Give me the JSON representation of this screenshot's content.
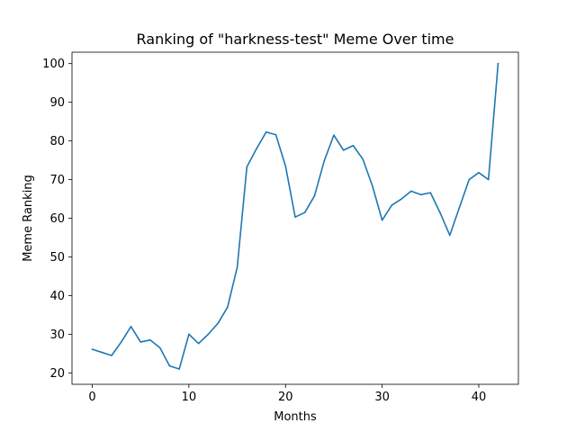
{
  "chart_data": {
    "type": "line",
    "title": "Ranking of \"harkness-test\" Meme Over time",
    "xlabel": "Months",
    "ylabel": "Meme Ranking",
    "xlim": [
      -2.1,
      44.1
    ],
    "ylim": [
      17.05,
      102.95
    ],
    "xticks": [
      0,
      10,
      20,
      30,
      40
    ],
    "yticks": [
      20,
      30,
      40,
      50,
      60,
      70,
      80,
      90,
      100
    ],
    "grid": false,
    "line_color": "#1f77b4",
    "series": [
      {
        "x": [
          0,
          1,
          2,
          3,
          4,
          5,
          6,
          7,
          8,
          9,
          10,
          11,
          12,
          13,
          14,
          15,
          16,
          17,
          18,
          19,
          20,
          21,
          22,
          23,
          24,
          25,
          26,
          27,
          28,
          29,
          30,
          31,
          32,
          33,
          34,
          35,
          36,
          37,
          38,
          39,
          40,
          41,
          42
        ],
        "values": [
          26.1,
          25.3,
          24.5,
          28,
          32,
          28,
          28.5,
          26.5,
          21.8,
          21,
          30,
          27.6,
          30,
          32.8,
          37,
          47.3,
          73.3,
          78,
          82.3,
          81.6,
          73.5,
          60.3,
          61.5,
          65.8,
          74.8,
          81.5,
          77.6,
          78.8,
          75.3,
          68.3,
          59.5,
          63.4,
          65,
          67,
          66.1,
          66.6,
          61.4,
          55.6,
          62.8,
          70,
          71.8,
          70,
          100
        ]
      }
    ]
  }
}
